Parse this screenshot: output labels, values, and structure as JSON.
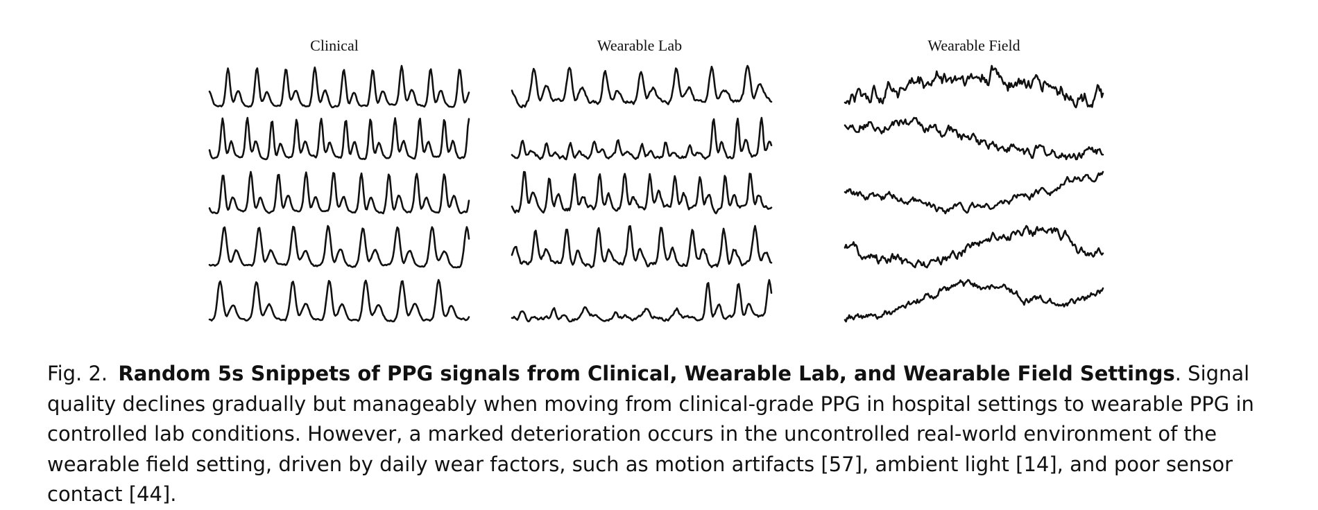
{
  "figure": {
    "panels": [
      {
        "title": "Clinical",
        "setting": "clinical"
      },
      {
        "title": "Wearable Lab",
        "setting": "wearable-lab"
      },
      {
        "title": "Wearable Field",
        "setting": "wearable-field"
      }
    ],
    "rows_per_panel": 5,
    "snippet_duration": "5s",
    "signal": "PPG"
  },
  "caption": {
    "label": "Fig. 2.",
    "title": "Random 5s Snippets of PPG signals from Clinical, Wearable Lab, and Wearable Field Settings",
    "body": ". Signal quality declines gradually but manageably when moving from clinical-grade PPG in hospital settings to wearable PPG in controlled lab conditions. However, a marked deterioration occurs in the uncontrolled real-world environment of the wearable field setting, driven by daily wear factors, such as motion artifacts [57], ambient light [14], and poor sensor contact [44]."
  }
}
